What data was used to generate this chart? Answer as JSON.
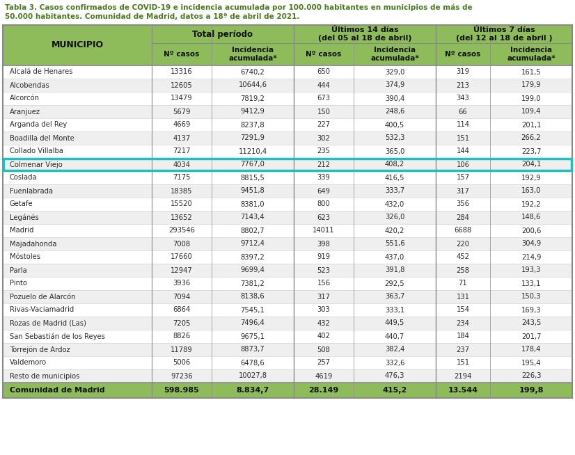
{
  "title_line1": "Tabla 3. Casos confirmados de COVID-19 e incidencia acumulada por 100.000 habitantes en municipios de más de",
  "title_line2": "50.000 habitantes. Comunidad de Madrid, datos a 18ª de abril de 2021.",
  "header_col0": "MUNICIPIO",
  "header_group1": "Total período",
  "header_group2": "Últimos 14 días\n(del 05 al 18 de abril)",
  "header_group3": "Últimos 7 días\n(del 12 al 18 de abril )",
  "col_headers": [
    "Nº casos",
    "Incidencia\nacumulada*",
    "Nº casos",
    "Incidencia\nacumulada*",
    "Nº casos",
    "Incidencia\nacumulada*"
  ],
  "municipalities": [
    "Alcalá de Henares",
    "Alcobendas",
    "Alcorcón",
    "Aranjuez",
    "Arganda del Rey",
    "Boadilla del Monte",
    "Collado Villalba",
    "Colmenar Viejo",
    "Coslada",
    "Fuenlabrada",
    "Getafe",
    "Legánés",
    "Madrid",
    "Majadahonda",
    "Móstoles",
    "Parla",
    "Pinto",
    "Pozuelo de Alarcón",
    "Rivas-Vaciamadrid",
    "Rozas de Madrid (Las)",
    "San Sebastián de los Reyes",
    "Torrejón de Ardoz",
    "Valdemoro",
    "Resto de municipios"
  ],
  "data": [
    [
      "13316",
      "6740,2",
      "650",
      "329,0",
      "319",
      "161,5"
    ],
    [
      "12605",
      "10644,6",
      "444",
      "374,9",
      "213",
      "179,9"
    ],
    [
      "13479",
      "7819,2",
      "673",
      "390,4",
      "343",
      "199,0"
    ],
    [
      "5679",
      "9412,9",
      "150",
      "248,6",
      "66",
      "109,4"
    ],
    [
      "4669",
      "8237,8",
      "227",
      "400,5",
      "114",
      "201,1"
    ],
    [
      "4137",
      "7291,9",
      "302",
      "532,3",
      "151",
      "266,2"
    ],
    [
      "7217",
      "11210,4",
      "235",
      "365,0",
      "144",
      "223,7"
    ],
    [
      "4034",
      "7767,0",
      "212",
      "408,2",
      "106",
      "204,1"
    ],
    [
      "7175",
      "8815,5",
      "339",
      "416,5",
      "157",
      "192,9"
    ],
    [
      "18385",
      "9451,8",
      "649",
      "333,7",
      "317",
      "163,0"
    ],
    [
      "15520",
      "8381,0",
      "800",
      "432,0",
      "356",
      "192,2"
    ],
    [
      "13652",
      "7143,4",
      "623",
      "326,0",
      "284",
      "148,6"
    ],
    [
      "293546",
      "8802,7",
      "14011",
      "420,2",
      "6688",
      "200,6"
    ],
    [
      "7008",
      "9712,4",
      "398",
      "551,6",
      "220",
      "304,9"
    ],
    [
      "17660",
      "8397,2",
      "919",
      "437,0",
      "452",
      "214,9"
    ],
    [
      "12947",
      "9699,4",
      "523",
      "391,8",
      "258",
      "193,3"
    ],
    [
      "3936",
      "7381,2",
      "156",
      "292,5",
      "71",
      "133,1"
    ],
    [
      "7094",
      "8138,6",
      "317",
      "363,7",
      "131",
      "150,3"
    ],
    [
      "6864",
      "7545,1",
      "303",
      "333,1",
      "154",
      "169,3"
    ],
    [
      "7205",
      "7496,4",
      "432",
      "449,5",
      "234",
      "243,5"
    ],
    [
      "8826",
      "9675,1",
      "402",
      "440,7",
      "184",
      "201,7"
    ],
    [
      "11789",
      "8873,7",
      "508",
      "382,4",
      "237",
      "178,4"
    ],
    [
      "5006",
      "6478,6",
      "257",
      "332,6",
      "151",
      "195,4"
    ],
    [
      "97236",
      "10027,8",
      "4619",
      "476,3",
      "2194",
      "226,3"
    ]
  ],
  "footer_municipality": "Comunidad de Madrid",
  "footer_data": [
    "598.985",
    "8.834,7",
    "28.149",
    "415,2",
    "13.544",
    "199,8"
  ],
  "highlighted_row": 7,
  "header_bg": "#8FBC5A",
  "row_bg_white": "#FFFFFF",
  "row_bg_light": "#EFEFEF",
  "footer_bg": "#8FBC5A",
  "title_color": "#4B7A1E",
  "highlight_border": "#20C0C0",
  "border_color": "#888888",
  "light_line_color": "#CCCCCC",
  "data_text_color": "#2A2A2A",
  "footer_text_color": "#111111"
}
